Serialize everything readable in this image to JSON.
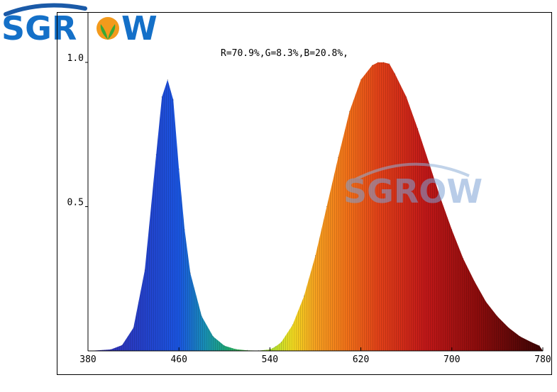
{
  "logo": {
    "text": "SGROW",
    "primary_color": "#1470c8",
    "accent_color": "#1a5aa8",
    "sun_color": "#f39a1c",
    "leaf_color": "#3aa835"
  },
  "watermark": {
    "text": "SGROW"
  },
  "chart_data": {
    "type": "area",
    "title": "",
    "annotation": "R=70.9%,G=8.3%,B=20.8%,",
    "xlabel": "",
    "ylabel": "",
    "xlim": [
      380,
      780
    ],
    "ylim": [
      0,
      1.0
    ],
    "x_ticks": [
      "380",
      "460",
      "540",
      "620",
      "700",
      "780"
    ],
    "y_ticks": [
      "0.5",
      "1.0"
    ],
    "grid": false,
    "series": [
      {
        "x": [
          380,
          400,
          410,
          420,
          430,
          440,
          445,
          450,
          455,
          460,
          465,
          470,
          480,
          490,
          500,
          510,
          520,
          530,
          540,
          545,
          550,
          560,
          570,
          580,
          590,
          600,
          610,
          620,
          630,
          635,
          640,
          645,
          650,
          660,
          670,
          680,
          690,
          700,
          710,
          720,
          730,
          740,
          750,
          760,
          770,
          777,
          780
        ],
        "y": [
          0.0,
          0.005,
          0.02,
          0.08,
          0.28,
          0.68,
          0.88,
          0.94,
          0.87,
          0.63,
          0.42,
          0.27,
          0.12,
          0.05,
          0.018,
          0.006,
          0.002,
          0.001,
          0.005,
          0.015,
          0.03,
          0.09,
          0.19,
          0.33,
          0.5,
          0.67,
          0.83,
          0.94,
          0.99,
          1.0,
          1.0,
          0.995,
          0.96,
          0.88,
          0.77,
          0.65,
          0.53,
          0.42,
          0.32,
          0.24,
          0.17,
          0.12,
          0.08,
          0.05,
          0.03,
          0.018,
          0.0
        ]
      }
    ]
  }
}
